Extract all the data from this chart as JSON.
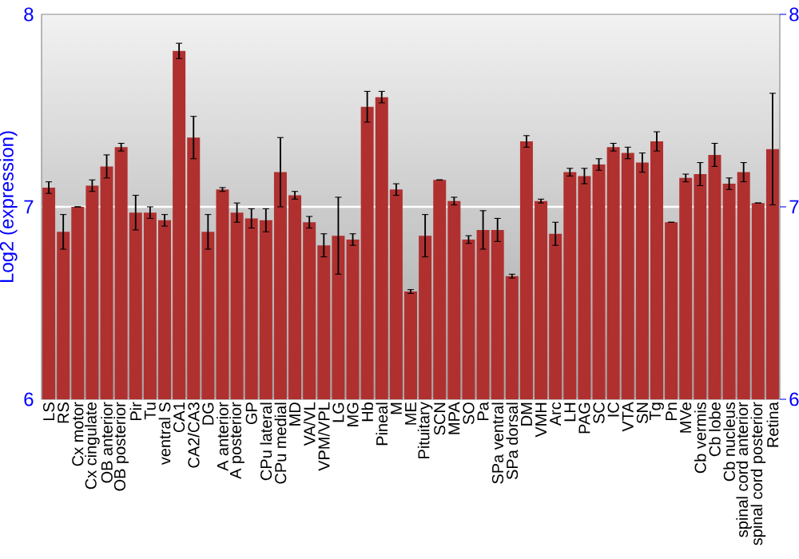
{
  "chart_data": {
    "type": "bar",
    "ylabel": "Log2 (expression)",
    "categories": [
      "LS",
      "RS",
      "Cx motor",
      "Cx cingulate",
      "OB anterior",
      "OB posterior",
      "Pir",
      "Tu",
      "ventral S",
      "CA1",
      "CA2/CA3",
      "DG",
      "A anterior",
      "A posterior",
      "GP",
      "CPu lateral",
      "CPu medial",
      "MD",
      "VA/VL",
      "VPM/VPL",
      "LG",
      "MG",
      "Hb",
      "Pineal",
      "M",
      "ME",
      "Pituitary",
      "SCN",
      "MPA",
      "SO",
      "Pa",
      "SPa ventral",
      "SPa dorsal",
      "DM",
      "VMH",
      "Arc",
      "LH",
      "PAG",
      "SC",
      "IC",
      "VTA",
      "SN",
      "Tg",
      "Pn",
      "MVe",
      "Cb vermis",
      "Cb lobe",
      "Cb nucleus",
      "spinal cord anterior",
      "spinal cord posterior",
      "Retina"
    ],
    "values": [
      7.1,
      6.87,
      7.0,
      7.11,
      7.21,
      7.31,
      6.97,
      6.97,
      6.93,
      7.81,
      7.36,
      6.87,
      7.09,
      6.97,
      6.94,
      6.93,
      7.18,
      7.06,
      6.92,
      6.8,
      6.85,
      6.83,
      7.52,
      7.57,
      7.09,
      6.56,
      6.85,
      7.14,
      7.03,
      6.83,
      6.88,
      6.88,
      6.64,
      7.34,
      7.03,
      6.86,
      7.18,
      7.16,
      7.22,
      7.31,
      7.28,
      7.23,
      7.34,
      6.92,
      7.15,
      7.17,
      7.27,
      7.12,
      7.18,
      7.02,
      7.3
    ],
    "errors": [
      0.03,
      0.09,
      0.0,
      0.03,
      0.06,
      0.02,
      0.09,
      0.03,
      0.03,
      0.04,
      0.11,
      0.09,
      0.01,
      0.05,
      0.05,
      0.06,
      0.18,
      0.02,
      0.03,
      0.06,
      0.2,
      0.03,
      0.08,
      0.03,
      0.03,
      0.01,
      0.11,
      0.0,
      0.02,
      0.02,
      0.1,
      0.06,
      0.01,
      0.03,
      0.01,
      0.06,
      0.02,
      0.04,
      0.03,
      0.02,
      0.03,
      0.05,
      0.05,
      0.0,
      0.02,
      0.06,
      0.06,
      0.03,
      0.05,
      0.0,
      0.29
    ],
    "color": "#b03030",
    "ylim": [
      6,
      8
    ],
    "yticks": [
      6,
      7,
      8
    ],
    "y2lim": [
      6,
      8
    ],
    "y2ticks": [
      6,
      7,
      8
    ],
    "grid": "y"
  }
}
